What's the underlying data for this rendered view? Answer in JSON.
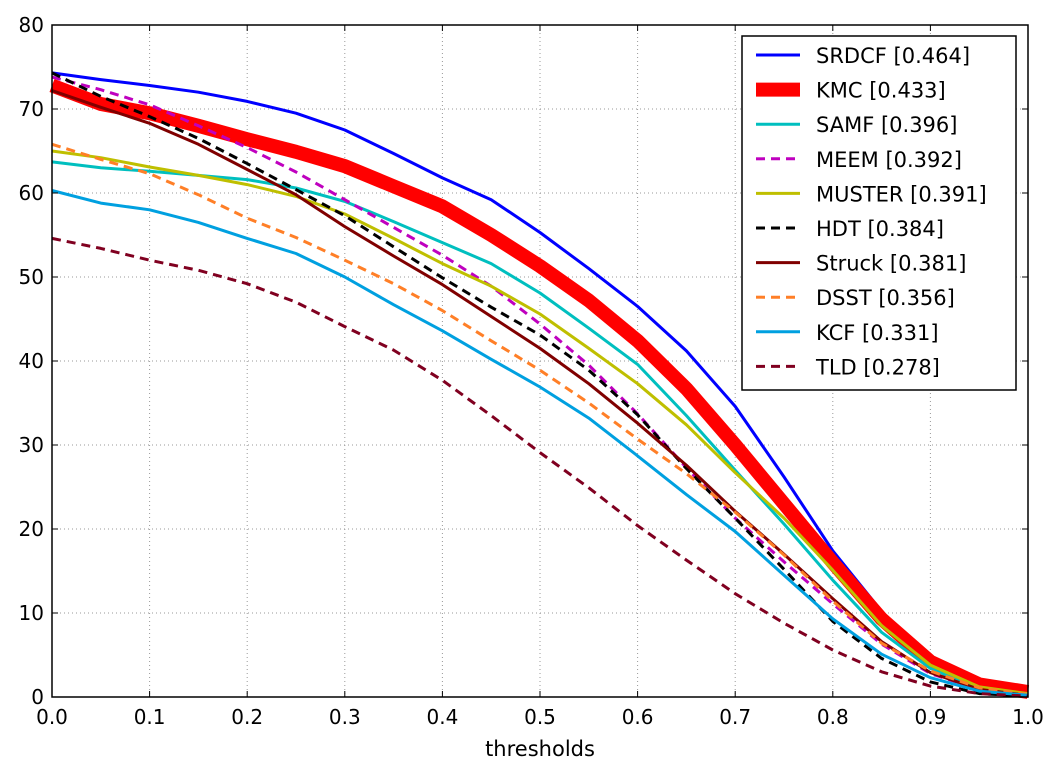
{
  "chart_data": {
    "type": "line",
    "title": "",
    "xlabel": "thresholds",
    "ylabel": "",
    "xlim": [
      0.0,
      1.0
    ],
    "ylim": [
      0,
      80
    ],
    "grid": true,
    "legend_position": "top-right",
    "x_ticks": [
      "0.0",
      "0.1",
      "0.2",
      "0.3",
      "0.4",
      "0.5",
      "0.6",
      "0.7",
      "0.8",
      "0.9",
      "1.0"
    ],
    "y_ticks": [
      "0",
      "10",
      "20",
      "30",
      "40",
      "50",
      "60",
      "70",
      "80"
    ],
    "x": [
      0.0,
      0.05,
      0.1,
      0.15,
      0.2,
      0.25,
      0.3,
      0.35,
      0.4,
      0.45,
      0.5,
      0.55,
      0.6,
      0.65,
      0.7,
      0.75,
      0.8,
      0.85,
      0.9,
      0.95,
      1.0
    ],
    "series": [
      {
        "name": "SRDCF [0.464]",
        "color": "#0000ff",
        "dash": "solid",
        "width": 3,
        "values": [
          74.3,
          73.5,
          72.8,
          72.0,
          70.9,
          69.5,
          67.5,
          64.7,
          61.8,
          59.2,
          55.3,
          51.0,
          46.5,
          41.2,
          34.6,
          26.2,
          17.4,
          10.2,
          4.3,
          1.3,
          0.4
        ]
      },
      {
        "name": "KMC [0.433]",
        "color": "#ff0000",
        "dash": "solid",
        "width": 14,
        "values": [
          72.8,
          70.6,
          69.5,
          68.0,
          66.4,
          64.9,
          63.2,
          60.8,
          58.4,
          55.0,
          51.3,
          47.2,
          42.4,
          36.7,
          30.0,
          23.0,
          16.0,
          9.3,
          4.2,
          1.5,
          0.6
        ]
      },
      {
        "name": "SAMF [0.396]",
        "color": "#00bfbf",
        "dash": "solid",
        "width": 3,
        "values": [
          63.7,
          63.0,
          62.6,
          62.1,
          61.6,
          60.6,
          59.0,
          56.6,
          54.1,
          51.6,
          48.1,
          43.9,
          39.6,
          33.5,
          27.0,
          20.6,
          13.9,
          7.7,
          3.4,
          1.0,
          0.3
        ]
      },
      {
        "name": "MEEM [0.392]",
        "color": "#bf00bf",
        "dash": "dashed",
        "width": 3,
        "values": [
          73.8,
          72.3,
          70.5,
          68.0,
          65.4,
          62.5,
          59.2,
          55.9,
          52.6,
          48.9,
          44.4,
          39.5,
          33.7,
          27.3,
          21.3,
          16.1,
          11.1,
          6.3,
          2.8,
          0.9,
          0.3
        ]
      },
      {
        "name": "MUSTER [0.391]",
        "color": "#bfbf00",
        "dash": "solid",
        "width": 3,
        "values": [
          65.0,
          64.2,
          63.1,
          62.1,
          61.0,
          59.6,
          57.5,
          54.6,
          51.6,
          48.9,
          45.6,
          41.5,
          37.3,
          32.4,
          26.7,
          21.3,
          15.1,
          8.5,
          3.8,
          1.2,
          0.4
        ]
      },
      {
        "name": "HDT [0.384]",
        "color": "#000000",
        "dash": "dashed",
        "width": 3,
        "values": [
          74.3,
          71.5,
          69.1,
          66.5,
          63.5,
          60.4,
          57.3,
          53.6,
          49.9,
          46.4,
          43.1,
          38.9,
          33.6,
          27.2,
          21.3,
          15.2,
          9.0,
          4.6,
          1.8,
          0.4,
          0.1
        ]
      },
      {
        "name": "Struck [0.381]",
        "color": "#800000",
        "dash": "solid",
        "width": 3,
        "values": [
          72.2,
          70.2,
          68.3,
          65.8,
          62.8,
          59.8,
          56.0,
          52.5,
          49.1,
          45.3,
          41.5,
          37.3,
          32.6,
          27.6,
          22.1,
          17.0,
          11.7,
          6.6,
          2.9,
          0.9,
          0.2
        ]
      },
      {
        "name": "DSST [0.356]",
        "color": "#ff7f27",
        "dash": "dashed",
        "width": 3,
        "values": [
          65.8,
          64.0,
          62.3,
          59.8,
          57.0,
          54.7,
          52.0,
          49.2,
          46.0,
          42.4,
          38.9,
          35.0,
          30.7,
          26.6,
          22.0,
          16.9,
          11.4,
          6.4,
          3.1,
          1.1,
          0.3
        ]
      },
      {
        "name": "KCF [0.331]",
        "color": "#00a0e0",
        "dash": "solid",
        "width": 3,
        "values": [
          60.3,
          58.8,
          58.0,
          56.5,
          54.6,
          52.8,
          50.0,
          46.7,
          43.6,
          40.2,
          36.9,
          33.2,
          28.7,
          24.1,
          19.7,
          14.5,
          9.3,
          5.1,
          2.3,
          0.7,
          0.2
        ]
      },
      {
        "name": "TLD [0.278]",
        "color": "#800020",
        "dash": "dashed",
        "width": 3,
        "values": [
          54.6,
          53.4,
          52.0,
          50.8,
          49.2,
          47.0,
          44.1,
          41.3,
          37.7,
          33.5,
          29.1,
          24.9,
          20.4,
          16.3,
          12.3,
          8.8,
          5.6,
          3.0,
          1.3,
          0.4,
          0.1
        ]
      }
    ]
  }
}
